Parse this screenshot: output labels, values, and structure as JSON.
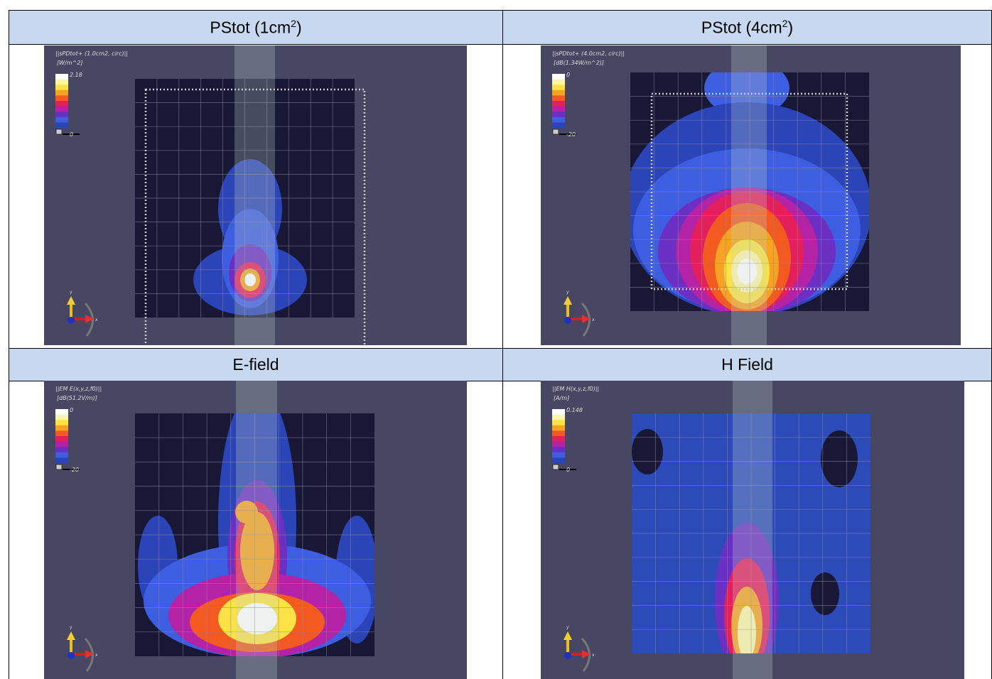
{
  "panels": [
    {
      "header": {
        "text": "PStot (1cm",
        "superscript": "2",
        "suffix": ")"
      },
      "plot": {
        "title": "||sPDtot+ (1.0cm2, circ)||",
        "unit": "[W/m^2]",
        "max_label": "2.18",
        "min_label": "0",
        "axis_y": "y",
        "axis_x": "x"
      }
    },
    {
      "header": {
        "text": "PStot (4cm",
        "superscript": "2",
        "suffix": ")"
      },
      "plot": {
        "title": "||sPDtot+ (4.0cm2, circ)||",
        "unit": "[dB(1.34W/m^2)]",
        "max_label": "0",
        "min_label": "-20",
        "axis_y": "y",
        "axis_x": "x"
      }
    },
    {
      "header": {
        "text": "E-field"
      },
      "plot": {
        "title": "||EM E(x,y,z,f0)||",
        "unit": "[dB(51.2V/m)]",
        "max_label": "0",
        "min_label": "-20",
        "axis_y": "y",
        "axis_x": "x"
      }
    },
    {
      "header": {
        "text": "H Field"
      },
      "plot": {
        "title": "||EM H(x,y,z,f0)||",
        "unit": "[A/m]",
        "max_label": "0.148",
        "min_label": "0",
        "axis_y": "y",
        "axis_x": "x"
      }
    }
  ]
}
